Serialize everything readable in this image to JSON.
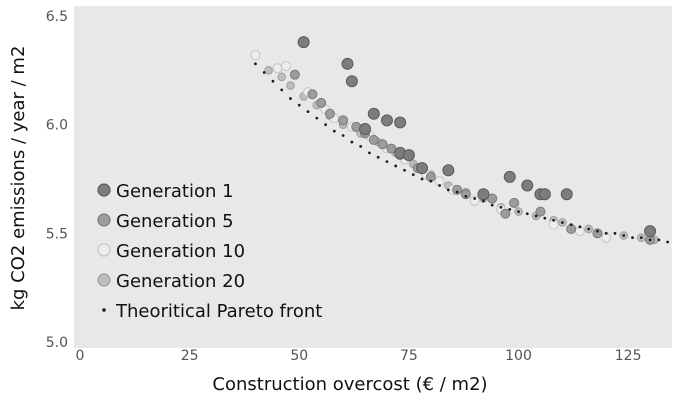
{
  "chart_data": {
    "type": "scatter",
    "title": "",
    "xlabel": "Construction overcost (€ / m2)",
    "ylabel": "kg CO2 emissions / year / m2",
    "xlim": [
      0,
      135
    ],
    "ylim": [
      5.0,
      6.5
    ],
    "x_ticks": [
      "0",
      "25",
      "50",
      "75",
      "100",
      "125"
    ],
    "y_ticks": [
      "5.0",
      "5.5",
      "6.0",
      "6.5"
    ],
    "grid": false,
    "legend_position": "bottom-left",
    "colors": {
      "plot_background": "#e8e8e8",
      "generation_1": "#7d7d7d",
      "generation_5": "#9c9c9c",
      "generation_10": "#ededed",
      "generation_20": "#bdbdbd",
      "pareto": "#1f1f1f"
    },
    "series": [
      {
        "name": "Generation 1",
        "points": [
          [
            51,
            6.38
          ],
          [
            61,
            6.28
          ],
          [
            62,
            6.2
          ],
          [
            67,
            6.05
          ],
          [
            70,
            6.02
          ],
          [
            73,
            6.01
          ],
          [
            73,
            5.87
          ],
          [
            75,
            5.86
          ],
          [
            78,
            5.8
          ],
          [
            84,
            5.79
          ],
          [
            98,
            5.76
          ],
          [
            102,
            5.72
          ],
          [
            105,
            5.68
          ],
          [
            106,
            5.68
          ],
          [
            111,
            5.68
          ],
          [
            130,
            5.51
          ],
          [
            65,
            5.98
          ],
          [
            92,
            5.68
          ]
        ]
      },
      {
        "name": "Generation 5",
        "points": [
          [
            49,
            6.23
          ],
          [
            53,
            6.14
          ],
          [
            55,
            6.1
          ],
          [
            57,
            6.05
          ],
          [
            60,
            6.02
          ],
          [
            63,
            5.99
          ],
          [
            65,
            5.96
          ],
          [
            67,
            5.93
          ],
          [
            69,
            5.91
          ],
          [
            71,
            5.89
          ],
          [
            73,
            5.86
          ],
          [
            77,
            5.8
          ],
          [
            80,
            5.76
          ],
          [
            86,
            5.7
          ],
          [
            88,
            5.68
          ],
          [
            94,
            5.66
          ],
          [
            99,
            5.64
          ],
          [
            105,
            5.6
          ],
          [
            112,
            5.52
          ],
          [
            118,
            5.5
          ],
          [
            130,
            5.47
          ],
          [
            97,
            5.59
          ]
        ]
      },
      {
        "name": "Generation 10",
        "points": [
          [
            40,
            6.32
          ],
          [
            45,
            6.26
          ],
          [
            47,
            6.27
          ],
          [
            52,
            6.15
          ],
          [
            56,
            6.07
          ],
          [
            58,
            6.03
          ],
          [
            62,
            5.99
          ],
          [
            66,
            5.95
          ],
          [
            70,
            5.89
          ],
          [
            74,
            5.84
          ],
          [
            79,
            5.77
          ],
          [
            82,
            5.74
          ],
          [
            85,
            5.7
          ],
          [
            90,
            5.65
          ],
          [
            96,
            5.61
          ],
          [
            108,
            5.54
          ],
          [
            114,
            5.51
          ],
          [
            120,
            5.48
          ]
        ]
      },
      {
        "name": "Generation 20",
        "points": [
          [
            43,
            6.25
          ],
          [
            46,
            6.22
          ],
          [
            48,
            6.18
          ],
          [
            51,
            6.13
          ],
          [
            54,
            6.09
          ],
          [
            57,
            6.04
          ],
          [
            60,
            6.0
          ],
          [
            64,
            5.96
          ],
          [
            68,
            5.92
          ],
          [
            72,
            5.87
          ],
          [
            76,
            5.82
          ],
          [
            80,
            5.77
          ],
          [
            84,
            5.72
          ],
          [
            88,
            5.69
          ],
          [
            92,
            5.66
          ],
          [
            96,
            5.62
          ],
          [
            100,
            5.6
          ],
          [
            104,
            5.58
          ],
          [
            108,
            5.56
          ],
          [
            110,
            5.55
          ],
          [
            116,
            5.52
          ],
          [
            124,
            5.49
          ],
          [
            128,
            5.48
          ],
          [
            131,
            5.47
          ]
        ]
      },
      {
        "name": "Theoritical Pareto front",
        "points": [
          [
            40,
            6.28
          ],
          [
            42,
            6.24
          ],
          [
            44,
            6.2
          ],
          [
            46,
            6.16
          ],
          [
            48,
            6.12
          ],
          [
            50,
            6.09
          ],
          [
            52,
            6.06
          ],
          [
            54,
            6.03
          ],
          [
            56,
            6.0
          ],
          [
            58,
            5.97
          ],
          [
            60,
            5.95
          ],
          [
            62,
            5.92
          ],
          [
            64,
            5.9
          ],
          [
            66,
            5.87
          ],
          [
            68,
            5.85
          ],
          [
            70,
            5.83
          ],
          [
            72,
            5.81
          ],
          [
            74,
            5.79
          ],
          [
            76,
            5.77
          ],
          [
            78,
            5.75
          ],
          [
            80,
            5.74
          ],
          [
            82,
            5.72
          ],
          [
            84,
            5.7
          ],
          [
            86,
            5.69
          ],
          [
            88,
            5.67
          ],
          [
            90,
            5.66
          ],
          [
            92,
            5.65
          ],
          [
            94,
            5.63
          ],
          [
            96,
            5.62
          ],
          [
            98,
            5.61
          ],
          [
            100,
            5.6
          ],
          [
            102,
            5.59
          ],
          [
            104,
            5.58
          ],
          [
            106,
            5.57
          ],
          [
            108,
            5.56
          ],
          [
            110,
            5.55
          ],
          [
            112,
            5.54
          ],
          [
            114,
            5.53
          ],
          [
            116,
            5.52
          ],
          [
            118,
            5.51
          ],
          [
            120,
            5.5
          ],
          [
            122,
            5.5
          ],
          [
            124,
            5.49
          ],
          [
            126,
            5.48
          ],
          [
            128,
            5.48
          ],
          [
            130,
            5.47
          ],
          [
            132,
            5.47
          ],
          [
            134,
            5.46
          ]
        ]
      }
    ]
  }
}
